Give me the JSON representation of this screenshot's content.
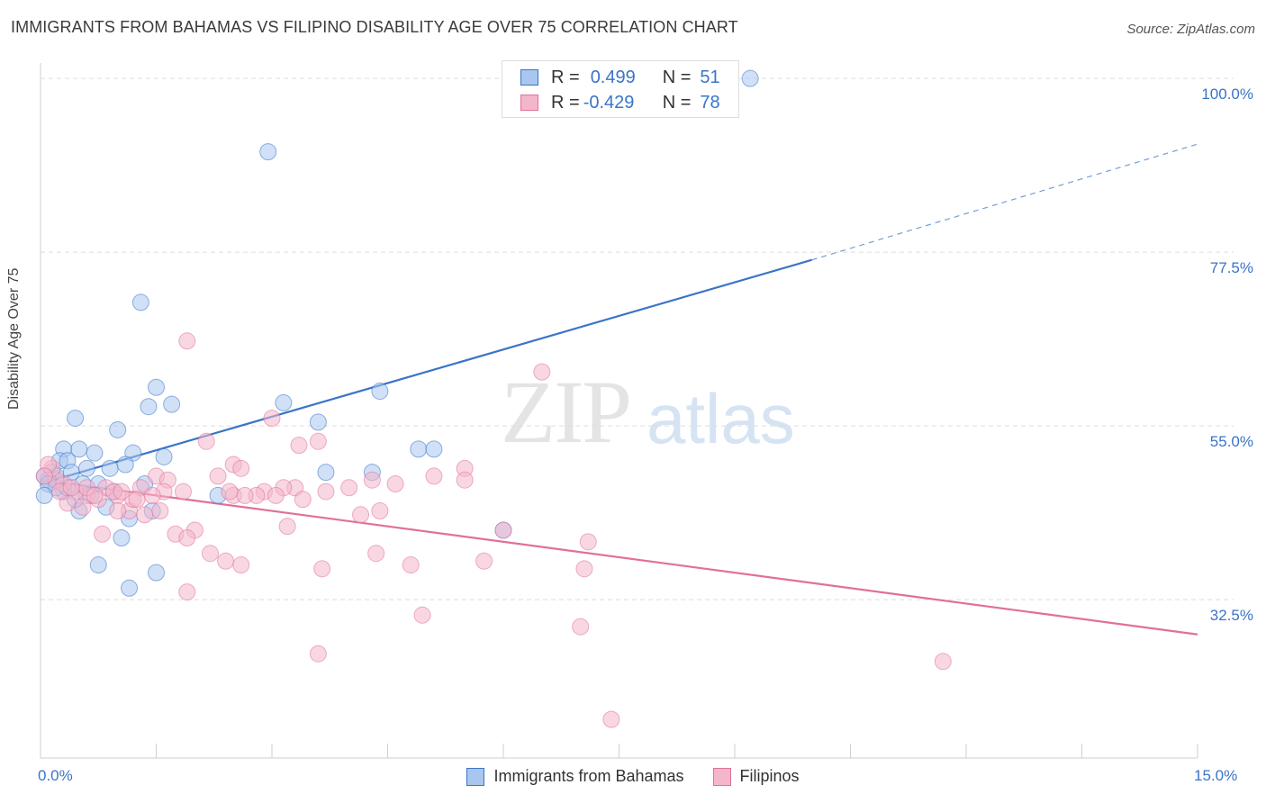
{
  "title": "IMMIGRANTS FROM BAHAMAS VS FILIPINO DISABILITY AGE OVER 75 CORRELATION CHART",
  "source": "Source: ZipAtlas.com",
  "watermark_a": "ZIP",
  "watermark_b": "atlas",
  "legend_top": {
    "r_label": "R =",
    "n_label": "N =",
    "bahamas_r": "0.499",
    "bahamas_n": "51",
    "filipinos_r": "-0.429",
    "filipinos_n": "78"
  },
  "colors": {
    "bahamas": "#3a74c8",
    "bahamas_fill": "#a9c6ee",
    "filipinos": "#e0709a",
    "filipinos_fill": "#f4b6cb"
  },
  "chart_data": {
    "type": "scatter",
    "title": "IMMIGRANTS FROM BAHAMAS VS FILIPINO DISABILITY AGE OVER 75 CORRELATION CHART",
    "xlabel": "",
    "ylabel": "Disability Age Over 75",
    "xlim": [
      0,
      15
    ],
    "ylim": [
      12,
      102
    ],
    "x_tick_labels": [
      "0.0%",
      "15.0%"
    ],
    "y_ticks": [
      32.5,
      55.0,
      77.5,
      100.0
    ],
    "y_tick_labels": [
      "32.5%",
      "55.0%",
      "77.5%",
      "100.0%"
    ],
    "grid": true,
    "legend_position": "top-center",
    "series": [
      {
        "name": "Immigrants from Bahamas",
        "trend": {
          "x": [
            0,
            10.0
          ],
          "y": [
            47.5,
            76.5
          ],
          "dashed_to": [
            15,
            91.5
          ]
        },
        "points": [
          [
            9.2,
            100.0
          ],
          [
            2.95,
            90.5
          ],
          [
            1.3,
            71.0
          ],
          [
            4.4,
            59.5
          ],
          [
            3.15,
            58.0
          ],
          [
            1.5,
            60.0
          ],
          [
            1.7,
            57.8
          ],
          [
            1.4,
            57.5
          ],
          [
            0.45,
            56.0
          ],
          [
            3.6,
            55.5
          ],
          [
            1.0,
            54.5
          ],
          [
            4.9,
            52.0
          ],
          [
            5.1,
            52.0
          ],
          [
            0.3,
            52.0
          ],
          [
            0.5,
            52.0
          ],
          [
            0.7,
            51.5
          ],
          [
            1.2,
            51.5
          ],
          [
            1.6,
            51.0
          ],
          [
            0.25,
            50.5
          ],
          [
            0.35,
            50.5
          ],
          [
            0.6,
            49.5
          ],
          [
            0.9,
            49.5
          ],
          [
            1.1,
            50.0
          ],
          [
            0.15,
            49.0
          ],
          [
            0.2,
            48.5
          ],
          [
            0.1,
            48.0
          ],
          [
            0.05,
            48.5
          ],
          [
            0.4,
            49.0
          ],
          [
            0.55,
            47.5
          ],
          [
            0.75,
            47.5
          ],
          [
            1.35,
            47.5
          ],
          [
            2.3,
            46.0
          ],
          [
            3.7,
            49.0
          ],
          [
            4.3,
            49.0
          ],
          [
            0.65,
            46.0
          ],
          [
            0.85,
            44.5
          ],
          [
            0.95,
            46.5
          ],
          [
            0.5,
            44.0
          ],
          [
            1.15,
            43.0
          ],
          [
            1.45,
            44.0
          ],
          [
            0.3,
            46.5
          ],
          [
            0.45,
            45.5
          ],
          [
            0.2,
            47.0
          ],
          [
            0.1,
            47.5
          ],
          [
            0.05,
            46.0
          ],
          [
            1.05,
            40.5
          ],
          [
            0.75,
            37.0
          ],
          [
            1.5,
            36.0
          ],
          [
            1.15,
            34.0
          ],
          [
            6.0,
            41.5
          ],
          [
            0.35,
            47.0
          ]
        ]
      },
      {
        "name": "Filipinos",
        "trend": {
          "x": [
            0,
            15
          ],
          "y": [
            48.0,
            28.0
          ]
        },
        "points": [
          [
            6.5,
            62.0
          ],
          [
            1.9,
            66.0
          ],
          [
            3.0,
            56.0
          ],
          [
            3.6,
            53.0
          ],
          [
            3.35,
            52.5
          ],
          [
            2.15,
            53.0
          ],
          [
            2.5,
            50.0
          ],
          [
            2.6,
            49.5
          ],
          [
            5.5,
            49.5
          ],
          [
            5.1,
            48.5
          ],
          [
            5.5,
            48.0
          ],
          [
            4.3,
            48.0
          ],
          [
            4.6,
            47.5
          ],
          [
            1.5,
            48.5
          ],
          [
            1.65,
            48.0
          ],
          [
            2.3,
            48.5
          ],
          [
            3.3,
            47.0
          ],
          [
            3.15,
            47.0
          ],
          [
            2.9,
            46.5
          ],
          [
            2.8,
            46.0
          ],
          [
            2.5,
            46.0
          ],
          [
            2.65,
            46.0
          ],
          [
            3.05,
            46.0
          ],
          [
            3.7,
            46.5
          ],
          [
            4.0,
            47.0
          ],
          [
            4.15,
            43.5
          ],
          [
            4.4,
            44.0
          ],
          [
            1.85,
            46.5
          ],
          [
            1.6,
            46.5
          ],
          [
            1.3,
            47.0
          ],
          [
            1.0,
            46.0
          ],
          [
            0.85,
            47.0
          ],
          [
            0.6,
            46.0
          ],
          [
            0.45,
            46.5
          ],
          [
            0.3,
            47.5
          ],
          [
            0.2,
            48.0
          ],
          [
            0.15,
            49.5
          ],
          [
            0.1,
            50.0
          ],
          [
            0.05,
            48.5
          ],
          [
            0.35,
            45.0
          ],
          [
            0.55,
            44.5
          ],
          [
            0.75,
            45.5
          ],
          [
            1.15,
            44.0
          ],
          [
            1.35,
            43.5
          ],
          [
            1.55,
            44.0
          ],
          [
            1.45,
            46.0
          ],
          [
            1.2,
            45.5
          ],
          [
            0.95,
            46.5
          ],
          [
            1.0,
            44.0
          ],
          [
            2.0,
            41.5
          ],
          [
            1.75,
            41.0
          ],
          [
            1.9,
            40.5
          ],
          [
            3.2,
            42.0
          ],
          [
            0.8,
            41.0
          ],
          [
            2.2,
            38.5
          ],
          [
            2.4,
            37.5
          ],
          [
            2.6,
            37.0
          ],
          [
            3.65,
            36.5
          ],
          [
            4.35,
            38.5
          ],
          [
            4.8,
            37.0
          ],
          [
            5.75,
            37.5
          ],
          [
            7.05,
            36.5
          ],
          [
            7.1,
            40.0
          ],
          [
            6.0,
            41.5
          ],
          [
            1.9,
            33.5
          ],
          [
            4.95,
            30.5
          ],
          [
            7.0,
            29.0
          ],
          [
            3.6,
            25.5
          ],
          [
            11.7,
            24.5
          ],
          [
            7.4,
            17.0
          ],
          [
            0.6,
            47.0
          ],
          [
            0.25,
            46.5
          ],
          [
            0.4,
            47.0
          ],
          [
            0.7,
            46.0
          ],
          [
            1.05,
            46.5
          ],
          [
            1.25,
            45.5
          ],
          [
            2.45,
            46.5
          ],
          [
            3.4,
            45.5
          ]
        ]
      }
    ]
  },
  "bottom_legend": {
    "bahamas": "Immigrants from Bahamas",
    "filipinos": "Filipinos"
  }
}
